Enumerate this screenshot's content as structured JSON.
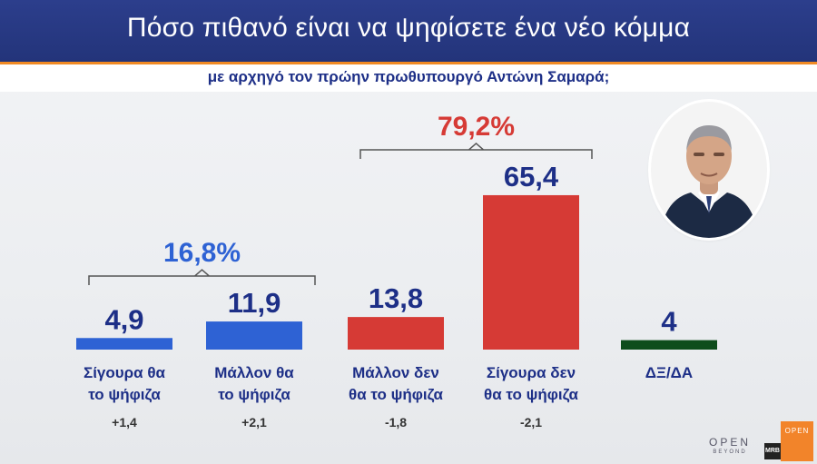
{
  "header": {
    "title": "Πόσο πιθανό είναι να ψηφίσετε ένα νέο κόμμα",
    "subtitle": "με αρχηγό τον πρώην πρωθυπουργό Αντώνη Σαμαρά;"
  },
  "colors": {
    "blue": "#2e62d4",
    "red": "#d63a35",
    "green": "#0e4d1c",
    "value_text": "#1d2f87",
    "group_blue_text": "#2e62d4",
    "group_red_text": "#d63a35",
    "header_bg": "#2c3e8c",
    "accent_orange": "#f08a24"
  },
  "chart_data": {
    "type": "bar",
    "title": "Πόσο πιθανό είναι να ψηφίσετε ένα νέο κόμμα",
    "subtitle": "με αρχηγό τον πρώην πρωθυπουργό Αντώνη Σαμαρά;",
    "categories": [
      [
        "Σίγουρα θα",
        "το ψήφιζα"
      ],
      [
        "Μάλλον θα",
        "το ψήφιζα"
      ],
      [
        "Μάλλον δεν",
        "θα το ψήφιζα"
      ],
      [
        "Σίγουρα δεν",
        "θα το ψήφιζα"
      ],
      [
        "ΔΞ/ΔΑ"
      ]
    ],
    "values": [
      4.9,
      11.9,
      13.8,
      65.4,
      4
    ],
    "value_labels": [
      "4,9",
      "11,9",
      "13,8",
      "65,4",
      "4"
    ],
    "changes": [
      "+1,4",
      "+2,1",
      "-1,8",
      "-2,1",
      ""
    ],
    "bar_colors": [
      "blue",
      "blue",
      "red",
      "red",
      "green"
    ],
    "groups": [
      {
        "label": "16,8%",
        "value": 16.8,
        "from": 0,
        "to": 1,
        "color": "blue"
      },
      {
        "label": "79,2%",
        "value": 79.2,
        "from": 2,
        "to": 3,
        "color": "red"
      }
    ],
    "grid": false,
    "legend": "none"
  },
  "logos": {
    "open": "OPEN",
    "open_sub": "BEYOND",
    "mrb": "MRB",
    "orange": "OPEN"
  }
}
